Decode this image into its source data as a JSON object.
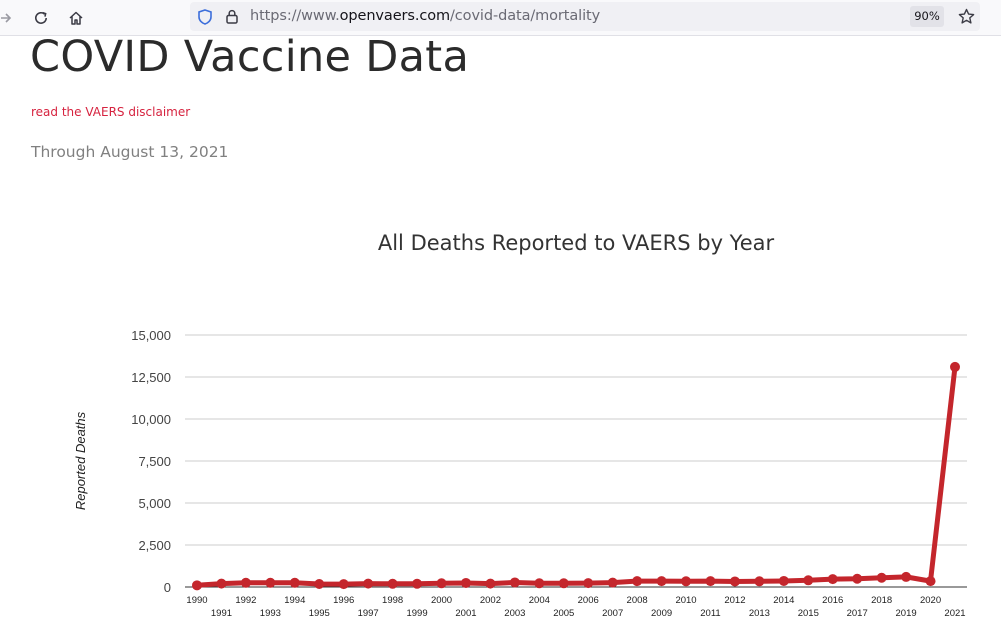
{
  "browser": {
    "url_prefix": "https://www.",
    "url_host": "openvaers.com",
    "url_path": "/covid-data/mortality",
    "zoom": "90%"
  },
  "page": {
    "title": "COVID Vaccine Data",
    "disclaimer_link": "read the VAERS disclaimer",
    "subtitle": "Through August 13, 2021"
  },
  "colors": {
    "line": "#c4262c",
    "disclaimer": "#d6233f"
  },
  "icons": [
    "forward-arrow-icon",
    "reload-icon",
    "home-icon",
    "shield-icon",
    "lock-icon",
    "star-icon"
  ],
  "chart_data": {
    "type": "line",
    "title": "All Deaths Reported to VAERS by Year",
    "xlabel": "",
    "ylabel": "Reported Deaths",
    "ylim": [
      0,
      15000
    ],
    "yticks": [
      0,
      2500,
      5000,
      7500,
      10000,
      12500,
      15000
    ],
    "ytick_labels": [
      "0",
      "2,500",
      "5,000",
      "7,500",
      "10,000",
      "12,500",
      "15,000"
    ],
    "grid": true,
    "legend": "none",
    "categories": [
      "1990",
      "1991",
      "1992",
      "1993",
      "1994",
      "1995",
      "1996",
      "1997",
      "1998",
      "1999",
      "2000",
      "2001",
      "2002",
      "2003",
      "2004",
      "2005",
      "2006",
      "2007",
      "2008",
      "2009",
      "2010",
      "2011",
      "2012",
      "2013",
      "2014",
      "2015",
      "2016",
      "2017",
      "2018",
      "2019",
      "2020",
      "2021"
    ],
    "series": [
      {
        "values": [
          100,
          200,
          250,
          250,
          250,
          180,
          170,
          200,
          190,
          190,
          220,
          240,
          200,
          270,
          220,
          220,
          230,
          260,
          350,
          350,
          340,
          350,
          330,
          340,
          360,
          400,
          470,
          490,
          550,
          600,
          350,
          13100
        ]
      }
    ]
  }
}
